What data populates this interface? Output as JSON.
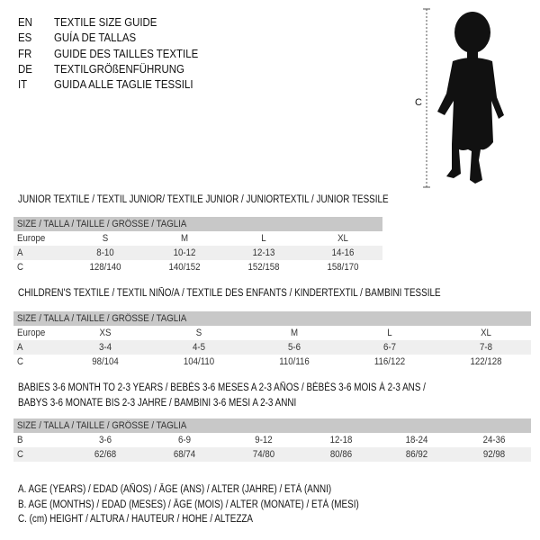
{
  "header": {
    "languages": [
      {
        "code": "EN",
        "label": "TEXTILE SIZE GUIDE"
      },
      {
        "code": "ES",
        "label": "GUÍA DE TALLAS"
      },
      {
        "code": "FR",
        "label": "GUIDE DES TAILLES TEXTILE"
      },
      {
        "code": "DE",
        "label": "TEXTILGRÖßENFÜHRUNG"
      },
      {
        "code": "IT",
        "label": "GUIDA ALLE TAGLIE TESSILI"
      }
    ],
    "figure_label": "C"
  },
  "tables": [
    {
      "title_lines": [
        "JUNIOR TEXTILE / TEXTIL JUNIOR/ TEXTILE JUNIOR / JUNIORTEXTIL / JUNIOR TESSILE"
      ],
      "header": "SIZE / TALLA / TAILLE / GRÖSSE / TAGLIA",
      "rows": [
        {
          "label": "Europe",
          "values": [
            "S",
            "M",
            "L",
            "XL"
          ],
          "shaded": false
        },
        {
          "label": "A",
          "values": [
            "8-10",
            "10-12",
            "12-13",
            "14-16"
          ],
          "shaded": true
        },
        {
          "label": "C",
          "values": [
            "128/140",
            "140/152",
            "152/158",
            "158/170"
          ],
          "shaded": false
        }
      ]
    },
    {
      "title_lines": [
        "CHILDREN'S TEXTILE / TEXTIL NIÑO/A / TEXTILE DES ENFANTS / KINDERTEXTIL / BAMBINI TESSILE"
      ],
      "header": "SIZE / TALLA / TAILLE / GRÖSSE / TAGLIA",
      "rows": [
        {
          "label": "Europe",
          "values": [
            "XS",
            "S",
            "M",
            "L",
            "XL"
          ],
          "shaded": false
        },
        {
          "label": "A",
          "values": [
            "3-4",
            "4-5",
            "5-6",
            "6-7",
            "7-8"
          ],
          "shaded": true
        },
        {
          "label": "C",
          "values": [
            "98/104",
            "104/110",
            "110/116",
            "116/122",
            "122/128"
          ],
          "shaded": false
        }
      ]
    },
    {
      "title_lines": [
        "BABIES 3-6 MONTH TO 2-3 YEARS / BEBÉS 3-6 MESES A 2-3 AÑOS / BÉBÉS 3-6 MOIS À 2-3 ANS /",
        "BABYS 3-6 MONATE BIS 2-3 JAHRE / BAMBINI 3-6 MESI A 2-3 ANNI"
      ],
      "header": "SIZE / TALLA / TAILLE / GRÖSSE / TAGLIA",
      "rows": [
        {
          "label": "B",
          "values": [
            "3-6",
            "6-9",
            "9-12",
            "12-18",
            "18-24",
            "24-36"
          ],
          "shaded": false
        },
        {
          "label": "C",
          "values": [
            "62/68",
            "68/74",
            "74/80",
            "80/86",
            "86/92",
            "92/98"
          ],
          "shaded": true
        }
      ]
    }
  ],
  "legend": [
    "A. AGE (YEARS) / EDAD (AÑOS) / ÂGE (ANS) / ALTER (JAHRE) / ETÀ (ANNI)",
    "B. AGE (MONTHS) / EDAD (MESES) / ÂGE (MOIS) / ALTER (MONATE) / ETÀ (MESI)",
    "C. (cm) HEIGHT / ALTURA / HAUTEUR / HÖHE / ALTEZZA"
  ],
  "colors": {
    "header_bg": "#c8c8c8",
    "shade_bg": "#efefef",
    "text": "#111111"
  }
}
